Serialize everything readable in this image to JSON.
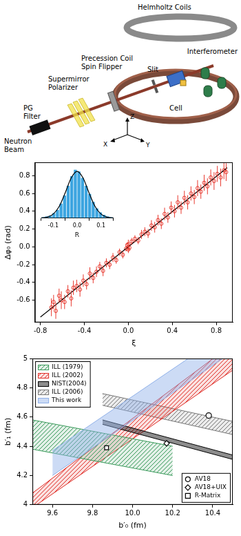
{
  "diagram": {
    "labels": {
      "helmholtz": [
        "Helmholtz Coils"
      ],
      "precession": [
        "Precession Coil",
        "Spin Flipper"
      ],
      "polarizer": [
        "Supermirror",
        "Polarizer"
      ],
      "slit": [
        "Slit"
      ],
      "interferometer": [
        "Interferometer"
      ],
      "cell": [
        "Cell"
      ],
      "filter": [
        "PG",
        "Filter"
      ],
      "beam": [
        "Neutron",
        "Beam"
      ],
      "axis_z": [
        "Z"
      ],
      "axis_x": [
        "X"
      ],
      "axis_y": [
        "Y"
      ]
    }
  },
  "chart_data": [
    {
      "type": "scatter",
      "x_label": "ξ",
      "y_label": "Δφ₀ (rad)",
      "xlim": [
        -0.85,
        0.95
      ],
      "ylim": [
        -0.85,
        0.95
      ],
      "xticks": [
        -0.8,
        -0.4,
        {
          "value": 0,
          "label": "0.0"
        },
        0.4,
        0.8
      ],
      "yticks": [
        -0.6,
        -0.4,
        -0.2,
        {
          "value": 0,
          "label": "0.0"
        },
        0.2,
        0.4,
        0.6,
        0.8
      ],
      "grid": false,
      "color": "#e8392f",
      "marker": "circle",
      "x": [
        -0.7,
        -0.68,
        -0.66,
        -0.63,
        -0.61,
        -0.58,
        -0.55,
        -0.52,
        -0.5,
        -0.47,
        -0.44,
        -0.41,
        -0.38,
        -0.35,
        -0.32,
        -0.29,
        -0.26,
        -0.23,
        -0.2,
        -0.17,
        -0.14,
        -0.11,
        -0.08,
        -0.05,
        -0.02,
        -0.01,
        0.0,
        0.0,
        0.01,
        0.03,
        0.06,
        0.09,
        0.12,
        0.15,
        0.18,
        0.21,
        0.24,
        0.27,
        0.3,
        0.33,
        0.36,
        0.39,
        0.42,
        0.45,
        0.48,
        0.51,
        0.54,
        0.57,
        0.6,
        0.63,
        0.66,
        0.69,
        0.72,
        0.75,
        0.78,
        0.81,
        0.84,
        0.87,
        0.89
      ],
      "values": [
        -0.68,
        -0.62,
        -0.72,
        -0.55,
        -0.6,
        -0.62,
        -0.5,
        -0.58,
        -0.46,
        -0.44,
        -0.48,
        -0.38,
        -0.42,
        -0.3,
        -0.35,
        -0.28,
        -0.22,
        -0.27,
        -0.18,
        -0.2,
        -0.12,
        -0.15,
        -0.06,
        -0.09,
        -0.02,
        0.02,
        -0.03,
        0.03,
        -0.01,
        0.06,
        0.09,
        0.07,
        0.14,
        0.17,
        0.15,
        0.24,
        0.22,
        0.3,
        0.26,
        0.37,
        0.33,
        0.44,
        0.4,
        0.5,
        0.44,
        0.55,
        0.5,
        0.6,
        0.56,
        0.66,
        0.62,
        0.72,
        0.68,
        0.78,
        0.74,
        0.82,
        0.78,
        0.86,
        0.84
      ],
      "errors": [
        0.1,
        0.08,
        0.09,
        0.08,
        0.1,
        0.08,
        0.07,
        0.09,
        0.08,
        0.07,
        0.08,
        0.07,
        0.06,
        0.07,
        0.06,
        0.06,
        0.05,
        0.06,
        0.05,
        0.05,
        0.05,
        0.04,
        0.04,
        0.04,
        0.03,
        0.03,
        0.04,
        0.05,
        0.03,
        0.04,
        0.04,
        0.04,
        0.05,
        0.05,
        0.05,
        0.06,
        0.06,
        0.06,
        0.06,
        0.07,
        0.06,
        0.07,
        0.07,
        0.08,
        0.07,
        0.08,
        0.08,
        0.08,
        0.08,
        0.09,
        0.08,
        0.09,
        0.09,
        0.09,
        0.1,
        0.09,
        0.1,
        0.1,
        0.1
      ],
      "fit": {
        "x": [
          -0.8,
          0.9
        ],
        "values": [
          -0.79,
          0.89
        ],
        "color": "#000000",
        "line_style": "solid"
      }
    },
    {
      "type": "histogram",
      "x_label": "R",
      "xlim": [
        -0.15,
        0.15
      ],
      "ylim": [
        0,
        65
      ],
      "xticks": [
        -0.1,
        {
          "value": 0,
          "label": "0.0"
        },
        0.1
      ],
      "tick_labels": "x",
      "color": "#3da5e0",
      "bins": [
        -0.15,
        -0.135,
        -0.12,
        -0.105,
        -0.09,
        -0.075,
        -0.06,
        -0.045,
        -0.03,
        -0.015,
        0,
        0.015,
        0.03,
        0.045,
        0.06,
        0.075,
        0.09,
        0.105,
        0.12,
        0.135,
        0.15
      ],
      "counts": [
        1,
        2,
        3,
        6,
        10,
        18,
        28,
        40,
        52,
        60,
        58,
        50,
        40,
        30,
        20,
        12,
        7,
        4,
        2,
        1
      ],
      "fit": {
        "x": [
          -0.15,
          -0.125,
          -0.1,
          -0.075,
          -0.05,
          -0.025,
          0,
          0.025,
          0.05,
          0.075,
          0.1,
          0.125,
          0.15
        ],
        "values": [
          0.2,
          1.2,
          4.9,
          14.5,
          31.3,
          49.7,
          58,
          49.7,
          31.3,
          14.5,
          4.9,
          1.2,
          0.2
        ],
        "color": "#000000",
        "line_style": "solid"
      }
    },
    {
      "type": "area",
      "x_label": "b′₀ (fm)",
      "y_label": "b′₁ (fm)",
      "xlim": [
        9.5,
        10.5
      ],
      "ylim": [
        4.0,
        5.0
      ],
      "xticks": [
        9.6,
        9.8,
        {
          "value": 10,
          "label": "10.0"
        },
        10.2,
        10.4
      ],
      "yticks": [
        4,
        4.2,
        4.4,
        4.6,
        4.8,
        5
      ],
      "grid": false,
      "legend": "upper left",
      "series": [
        {
          "name": "ILL (1979)",
          "type": "hatched_band",
          "color": "#3a9a5b",
          "x": [
            9.5,
            10.2
          ],
          "lower": [
            4.38,
            4.2
          ],
          "upper": [
            4.58,
            4.4
          ]
        },
        {
          "name": "ILL (2002)",
          "type": "hatched_band",
          "color": "#e0302a",
          "x": [
            9.5,
            10.5
          ],
          "lower": [
            3.98,
            4.92
          ],
          "upper": [
            4.08,
            5.1
          ]
        },
        {
          "name": "NIST(2004)",
          "type": "band",
          "color": "#000000",
          "x": [
            9.85,
            10.5
          ],
          "lower": [
            4.55,
            4.31
          ],
          "upper": [
            4.58,
            4.34
          ]
        },
        {
          "name": "ILL (2006)",
          "type": "hatched_band",
          "color": "#777777",
          "x": [
            9.85,
            10.5
          ],
          "lower": [
            4.68,
            4.48
          ],
          "upper": [
            4.76,
            4.57
          ]
        },
        {
          "name": "This work",
          "type": "band",
          "color": "#8fb0e8",
          "x": [
            9.6,
            10.45
          ],
          "lower": [
            4.2,
            5.0
          ],
          "upper": [
            4.37,
            5.16
          ]
        },
        {
          "name": "AV18",
          "type": "scatter",
          "marker": "circle",
          "color": "#000000",
          "x": [
            10.38
          ],
          "values": [
            4.61
          ]
        },
        {
          "name": "AV18+UIX",
          "type": "scatter",
          "marker": "diamond",
          "color": "#000000",
          "x": [
            10.17
          ],
          "values": [
            4.42
          ]
        },
        {
          "name": "R-Matrix",
          "type": "scatter",
          "marker": "square",
          "color": "#000000",
          "x": [
            9.87
          ],
          "values": [
            4.39
          ]
        }
      ]
    }
  ]
}
